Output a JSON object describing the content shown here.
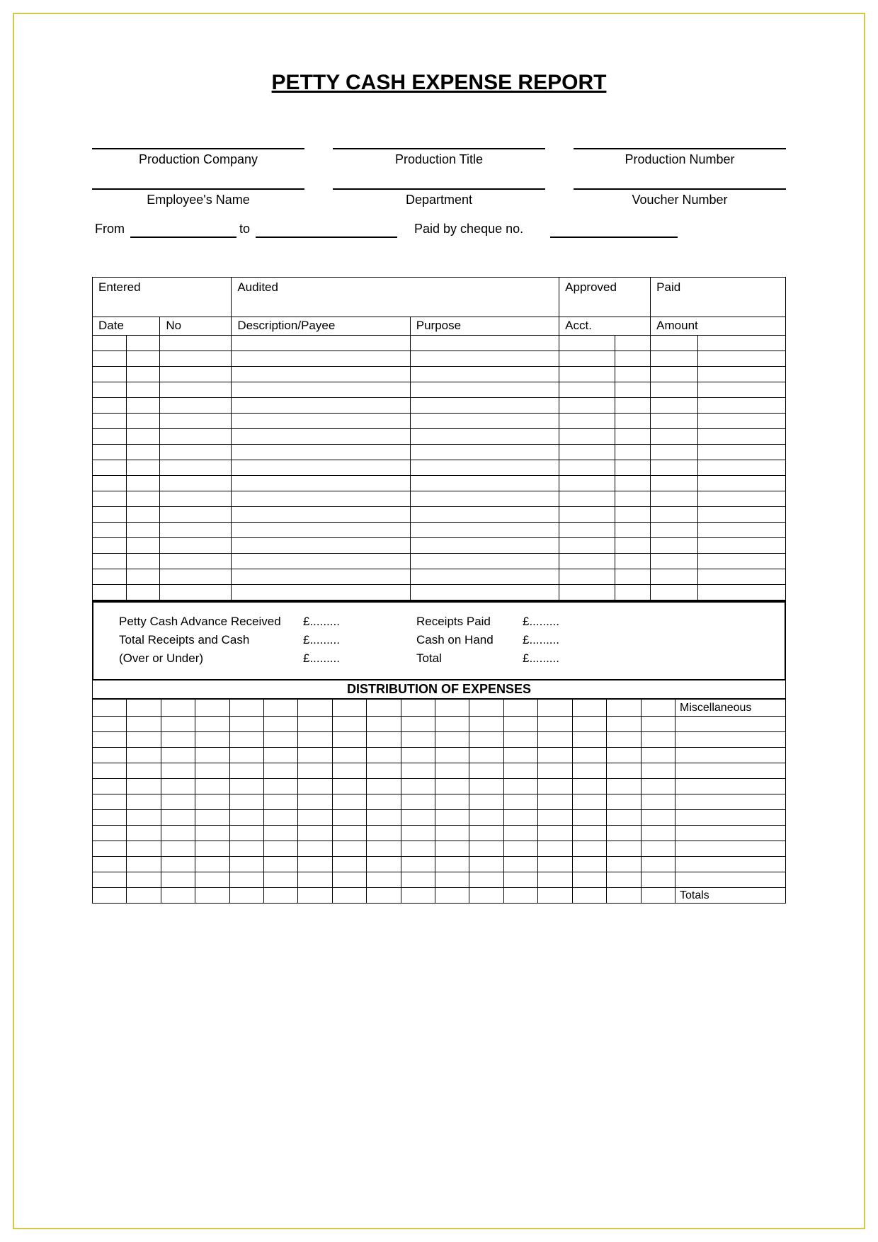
{
  "title": "PETTY CASH EXPENSE REPORT",
  "colors": {
    "frame": "#d4c548",
    "line": "#000000",
    "bg": "#ffffff"
  },
  "header": {
    "row1": [
      {
        "label": "Production Company",
        "value": ""
      },
      {
        "label": "Production Title",
        "value": ""
      },
      {
        "label": "Production Number",
        "value": ""
      }
    ],
    "row2": [
      {
        "label": "Employee's Name",
        "value": ""
      },
      {
        "label": "Department",
        "value": ""
      },
      {
        "label": "Voucher Number",
        "value": ""
      }
    ],
    "dateRow": {
      "from_label": "From",
      "to_label": "to",
      "paid_label": "Paid by cheque no.",
      "from_value": "",
      "to_value": "",
      "cheque_value": ""
    }
  },
  "statusHeaders": [
    "Entered",
    "Audited",
    "Approved",
    "Paid"
  ],
  "ledgerHeaders": {
    "date": "Date",
    "no": "No",
    "desc": "Description/Payee",
    "purpose": "Purpose",
    "acct": "Acct.",
    "amount": "Amount"
  },
  "ledgerRowCount": 17,
  "summary": {
    "left": [
      "Petty Cash Advance Received",
      "Total Receipts and Cash",
      "(Over or Under)"
    ],
    "leftVals": [
      "£.........",
      "£.........",
      "£........."
    ],
    "right": [
      "Receipts Paid",
      "Cash on Hand",
      "Total"
    ],
    "rightVals": [
      "£.........",
      "£.........",
      "£........."
    ]
  },
  "distribution": {
    "title": "DISTRIBUTION OF EXPENSES",
    "misc_label": "Miscellaneous",
    "columns": 17,
    "rowCount": 11,
    "totals_label": "Totals"
  }
}
